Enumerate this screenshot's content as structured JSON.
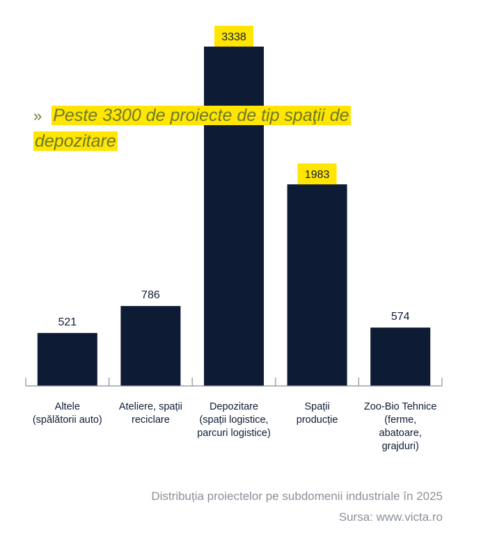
{
  "annotation": {
    "marker": "»",
    "text": "Peste 3300 de proiecte de tip spaţii de depozitare"
  },
  "chart_data": {
    "type": "bar",
    "title": "Distribuția proiectelor pe subdomenii industriale în 2025",
    "source": "Sursa: www.victa.ro",
    "xlabel": "",
    "ylabel": "",
    "ylim": [
      0,
      3600
    ],
    "grid": false,
    "categories": [
      [
        "Altele",
        "(spălătorii auto)"
      ],
      [
        "Ateliere, spații",
        "reciclare"
      ],
      [
        "Depozitare",
        "(spații logistice,",
        "parcuri logistice)"
      ],
      [
        "Spații",
        "producție"
      ],
      [
        "Zoo-Bio Tehnice",
        "(ferme,",
        "abatoare,",
        "grajduri)"
      ]
    ],
    "values": [
      521,
      786,
      3338,
      1983,
      574
    ],
    "value_labels": [
      "521",
      "786",
      "3338",
      "1983",
      "574"
    ],
    "highlighted": [
      false,
      false,
      true,
      true,
      false
    ],
    "colors": {
      "bar": "#0d1b35",
      "highlight": "#ffe500",
      "axis": "#8a8f99"
    }
  }
}
